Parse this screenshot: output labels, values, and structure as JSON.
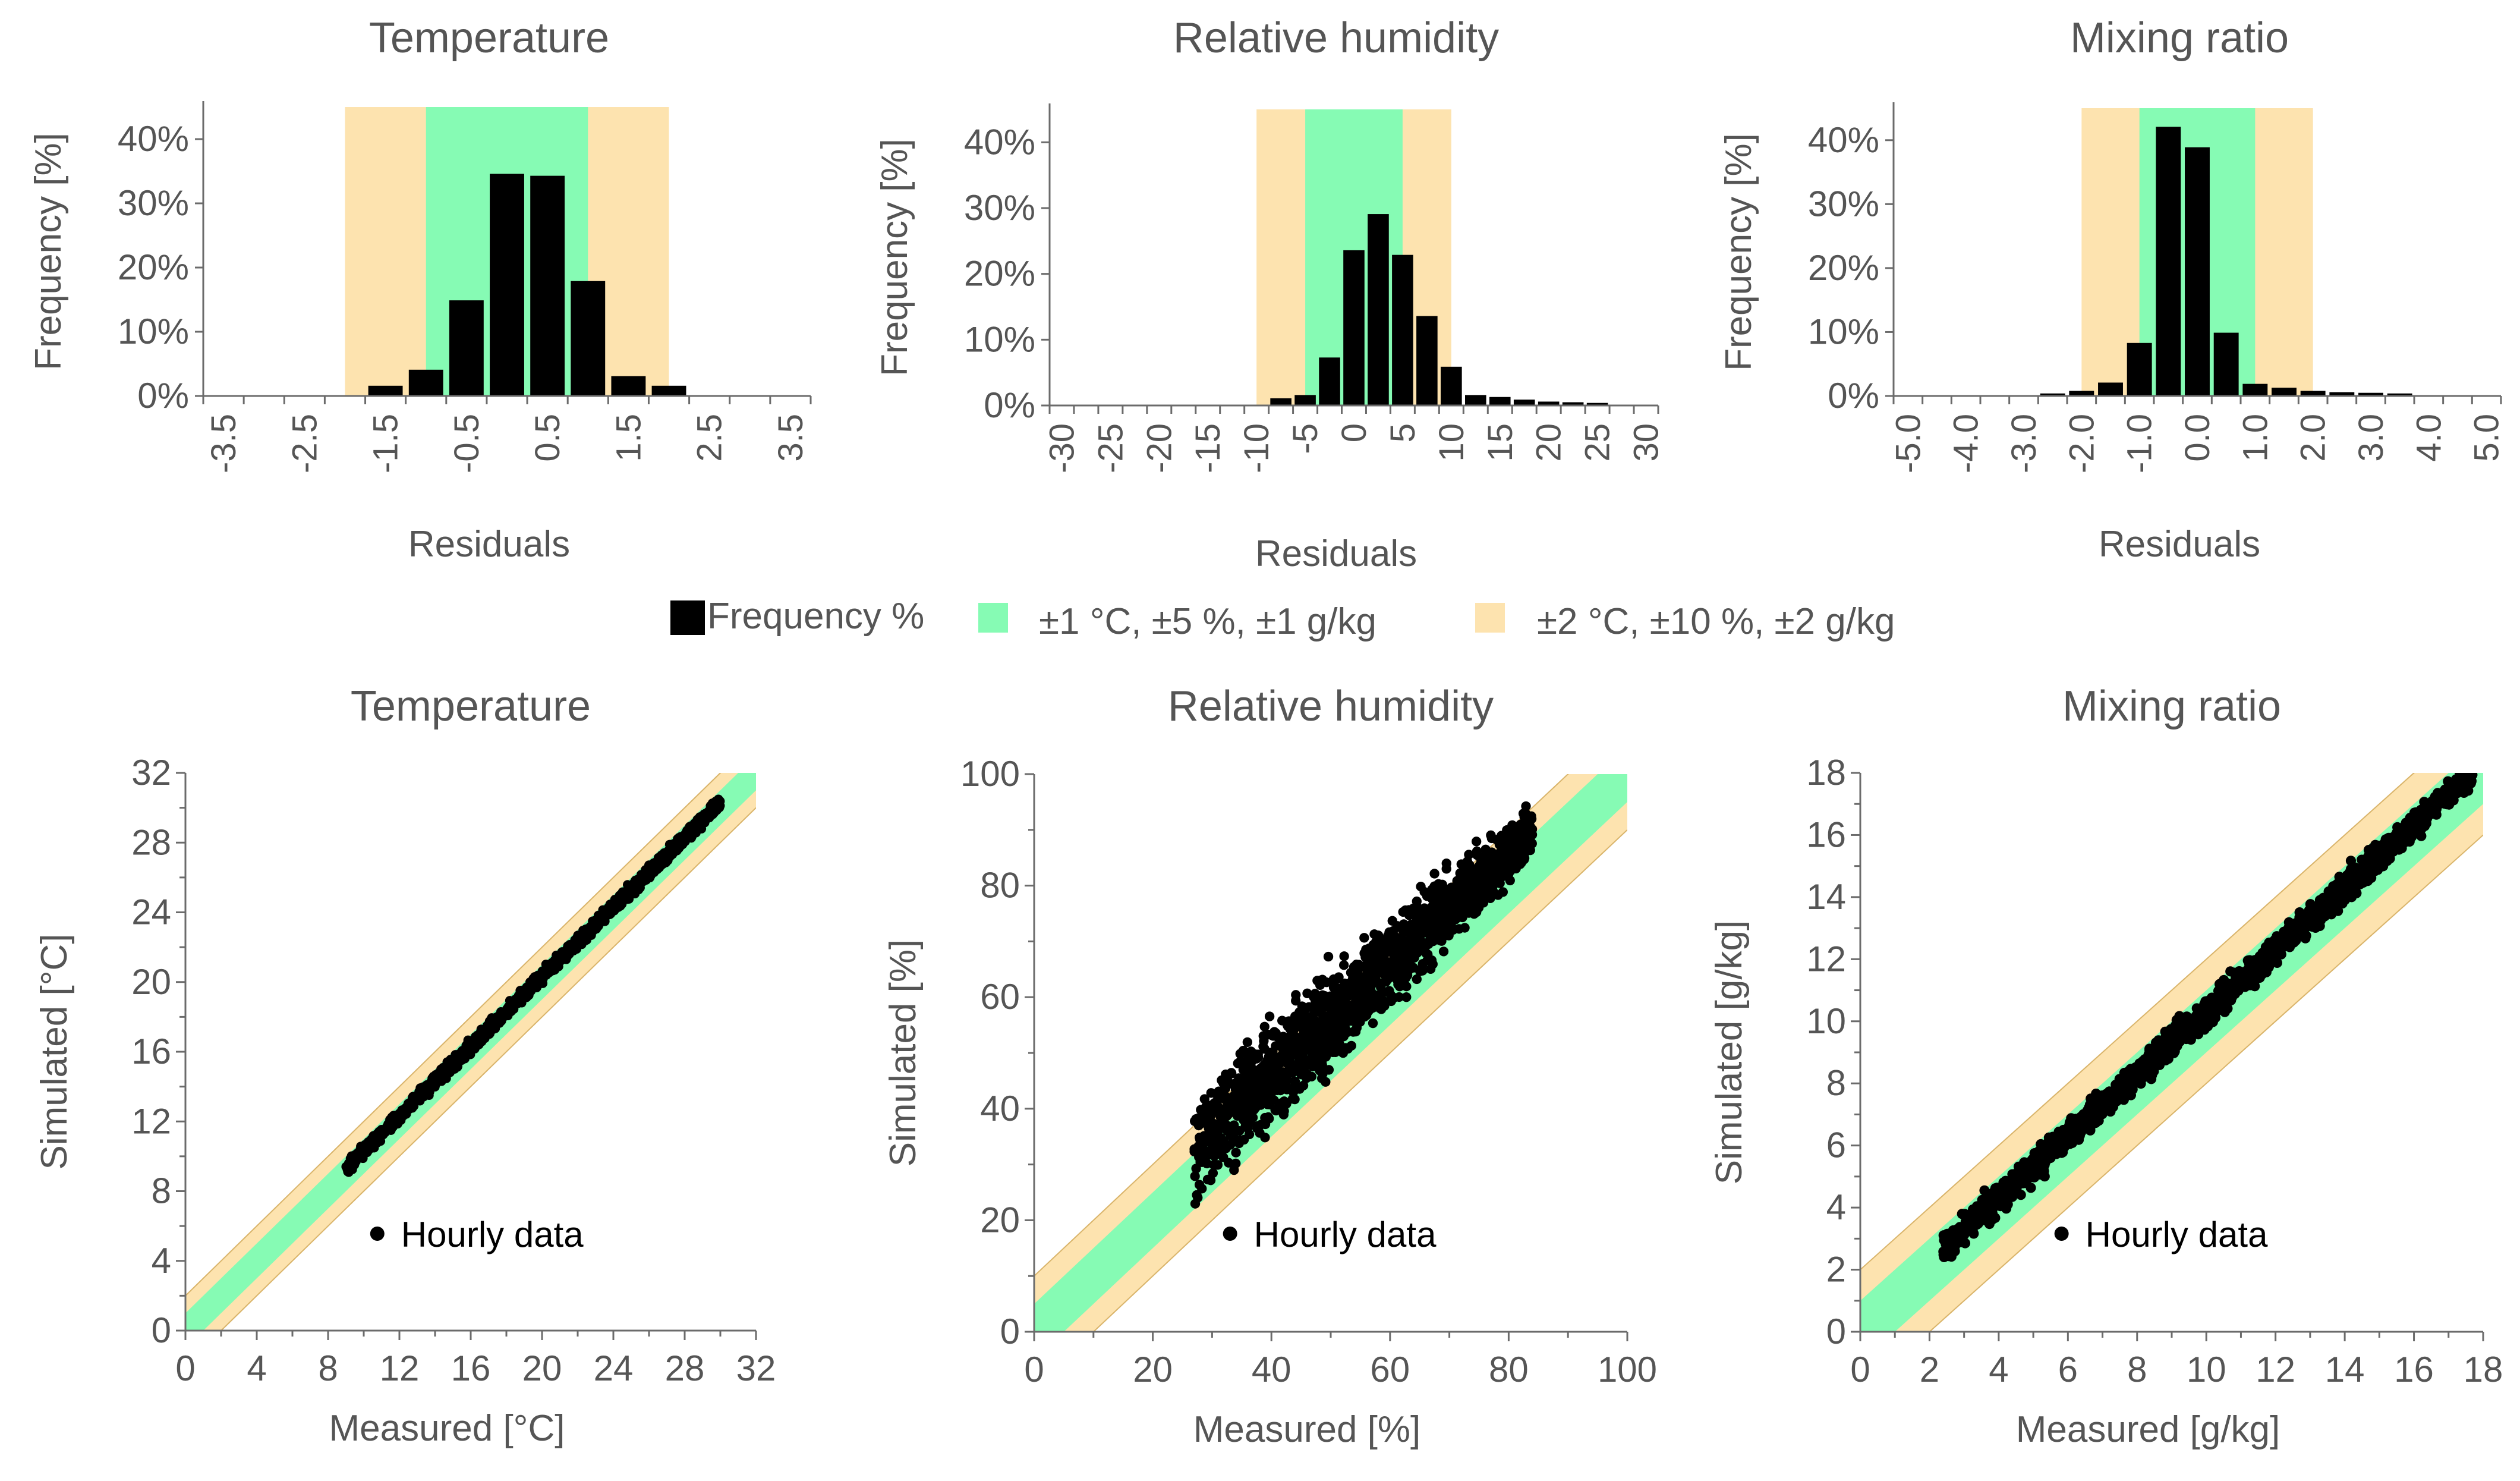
{
  "colors": {
    "bar": "#000000",
    "band1": "#86fbb4",
    "band2": "#fde3af",
    "axis": "#6b6b6b",
    "text": "#555555",
    "point": "#000000"
  },
  "legend": {
    "frequency": "Frequency %",
    "band1": "±1 °C, ±5 %, ±1 g/kg",
    "band2": "±2 °C, ±10 %, ±2 g/kg"
  },
  "chart_data": [
    {
      "type": "bar",
      "title": "Temperature",
      "xlabel": "Residuals",
      "ylabel": "Frequency [%]",
      "categories": [
        "-3.5",
        "-3.0",
        "-2.5",
        "-2.0",
        "-1.5",
        "-1.0",
        "-0.5",
        "0.0",
        "0.5",
        "1.0",
        "1.5",
        "2.0",
        "2.5",
        "3.0",
        "3.5"
      ],
      "tick_labels": [
        "-3.5",
        "-2.5",
        "-1.5",
        "-0.5",
        "0.5",
        "1.5",
        "2.5",
        "3.5"
      ],
      "values": [
        0,
        0,
        0,
        0,
        1.5,
        4,
        14.8,
        34.5,
        34.2,
        17.8,
        3,
        1.5,
        0,
        0,
        0
      ],
      "yticks": [
        "0%",
        "10%",
        "20%",
        "30%",
        "40%"
      ],
      "ylim": [
        0,
        45
      ],
      "band1": [
        -1,
        1
      ],
      "band2": [
        -2,
        2
      ]
    },
    {
      "type": "bar",
      "title": "Relative humidity",
      "xlabel": "Residuals",
      "ylabel": "Frequency [%]",
      "categories": [
        "-30",
        "-27.5",
        "-25",
        "-22.5",
        "-20",
        "-17.5",
        "-15",
        "-12.5",
        "-10",
        "-7.5",
        "-5",
        "-2.5",
        "0",
        "2.5",
        "5",
        "7.5",
        "10",
        "12.5",
        "15",
        "17.5",
        "20",
        "22.5",
        "25",
        "27.5",
        "30"
      ],
      "tick_labels": [
        "-30",
        "-25",
        "-20",
        "-15",
        "-10",
        "-5",
        "0",
        "5",
        "10",
        "15",
        "20",
        "25",
        "30"
      ],
      "values": [
        0,
        0,
        0,
        0,
        0,
        0,
        0,
        0,
        0,
        1,
        1.5,
        7.2,
        23.5,
        29,
        22.8,
        13.5,
        5.8,
        1.5,
        1.2,
        0.8,
        0.5,
        0.4,
        0.3,
        0,
        0
      ],
      "yticks": [
        "0%",
        "10%",
        "20%",
        "30%",
        "40%"
      ],
      "ylim": [
        0,
        45
      ],
      "band1": [
        -5,
        5
      ],
      "band2": [
        -10,
        10
      ]
    },
    {
      "type": "bar",
      "title": "Mixing ratio",
      "xlabel": "Residuals",
      "ylabel": "Frequency [%]",
      "categories": [
        "-5.0",
        "-4.5",
        "-4.0",
        "-3.5",
        "-3.0",
        "-2.5",
        "-2.0",
        "-1.5",
        "-1.0",
        "-0.5",
        "0.0",
        "0.5",
        "1.0",
        "1.5",
        "2.0",
        "2.5",
        "3.0",
        "3.5",
        "4.0",
        "4.5",
        "5.0"
      ],
      "tick_labels": [
        "-5.0",
        "-4.0",
        "-3.0",
        "-2.0",
        "-1.0",
        "0.0",
        "1.0",
        "2.0",
        "3.0",
        "4.0",
        "5.0"
      ],
      "values": [
        0,
        0,
        0,
        0,
        0,
        0.3,
        0.7,
        2,
        8.2,
        42,
        38.8,
        9.8,
        1.8,
        1.2,
        0.7,
        0.5,
        0.4,
        0.3,
        0,
        0,
        0
      ],
      "yticks": [
        "0%",
        "10%",
        "20%",
        "30%",
        "40%"
      ],
      "ylim": [
        0,
        45
      ],
      "band1": [
        -1,
        1
      ],
      "band2": [
        -2,
        2
      ]
    },
    {
      "type": "scatter",
      "title": "Temperature",
      "xlabel": "Measured [°C]",
      "ylabel": "Simulated [°C]",
      "xlim": [
        0,
        32
      ],
      "ylim": [
        0,
        32
      ],
      "ticks": [
        0,
        4,
        8,
        12,
        16,
        20,
        24,
        28,
        32
      ],
      "band1": 1,
      "band2": 2,
      "legend_label": "Hourly data",
      "point_cloud": {
        "x_range": [
          9,
          30
        ],
        "spread": 0.35,
        "bias": 0.3,
        "count": 1600
      }
    },
    {
      "type": "scatter",
      "title": "Relative humidity",
      "xlabel": "Measured [%]",
      "ylabel": "Simulated [%]",
      "xlim": [
        0,
        100
      ],
      "ylim": [
        0,
        100
      ],
      "ticks": [
        0,
        20,
        40,
        60,
        80,
        100
      ],
      "band1": 5,
      "band2": 10,
      "legend_label": "Hourly data",
      "point_cloud": {
        "x_range": [
          27,
          84
        ],
        "spread": 4.5,
        "bias": 6,
        "count": 1600
      }
    },
    {
      "type": "scatter",
      "title": "Mixing ratio",
      "xlabel": "Measured [g/kg]",
      "ylabel": "Simulated [g/kg]",
      "xlim": [
        0,
        18
      ],
      "ylim": [
        0,
        18
      ],
      "ticks": [
        0,
        2,
        4,
        6,
        8,
        10,
        12,
        14,
        16,
        18
      ],
      "band1": 1,
      "band2": 2,
      "legend_label": "Hourly data",
      "point_cloud": {
        "x_range": [
          2.4,
          17.8
        ],
        "spread": 0.45,
        "bias": 0.3,
        "count": 1600
      }
    }
  ]
}
